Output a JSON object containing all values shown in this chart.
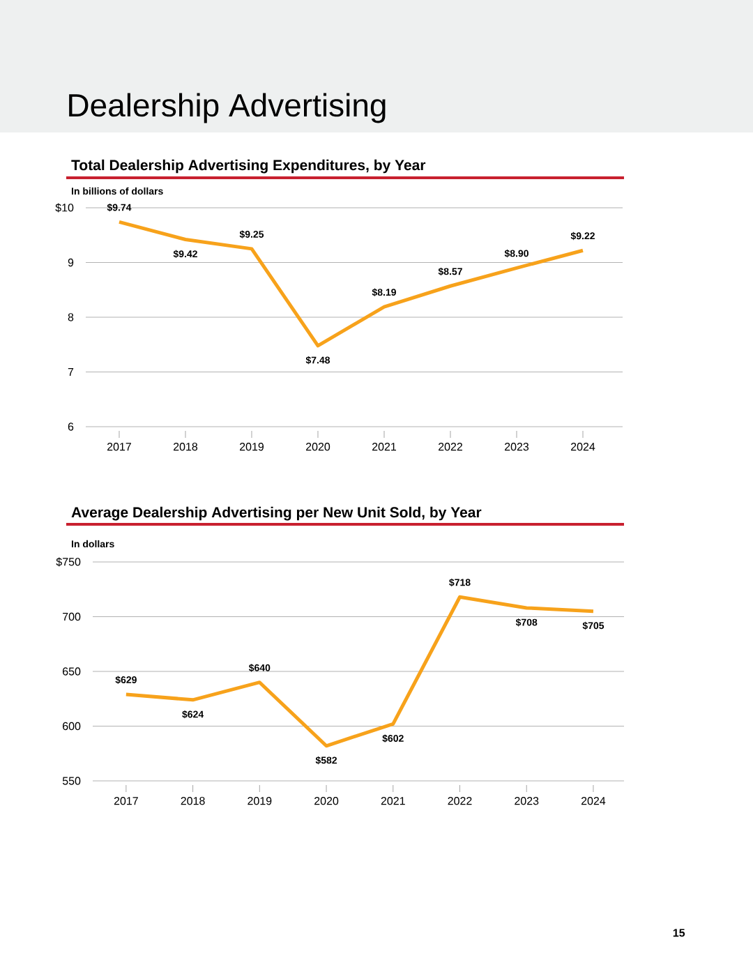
{
  "chart_data": [
    {
      "type": "line",
      "title": "Total Dealership Advertising Expenditures, by Year",
      "ylabel": "In billions of dollars",
      "annotations": [
        "Dealership Advertising"
      ],
      "categories": [
        "2017",
        "2018",
        "2019",
        "2020",
        "2021",
        "2022",
        "2023",
        "2024"
      ],
      "values": [
        9.74,
        9.42,
        9.25,
        7.48,
        8.19,
        8.57,
        8.9,
        9.22
      ],
      "value_labels": [
        "$9.74",
        "$9.42",
        "$9.25",
        "$7.48",
        "$8.19",
        "$8.57",
        "$8.90",
        "$9.22"
      ],
      "color": "#f7a21b",
      "ylim": [
        6,
        10
      ],
      "yticks": [
        6,
        7,
        8,
        9,
        {
          "value": 10,
          "label": "$10"
        }
      ],
      "grid": "y"
    },
    {
      "type": "line",
      "title": "Average Dealership Advertising per New Unit Sold, by Year",
      "ylabel": "In dollars",
      "annotations": [
        "15"
      ],
      "categories": [
        "2017",
        "2018",
        "2019",
        "2020",
        "2021",
        "2022",
        "2023",
        "2024"
      ],
      "values": [
        629,
        624,
        640,
        582,
        602,
        718,
        708,
        705
      ],
      "value_labels": [
        "$629",
        "$624",
        "$640",
        "$582",
        "$602",
        "$718",
        "$708",
        "$705"
      ],
      "color": "#f7a21b",
      "ylim": [
        550,
        750
      ],
      "yticks": [
        550,
        600,
        650,
        700,
        {
          "value": 750,
          "label": "$750"
        }
      ],
      "grid": "y"
    }
  ]
}
